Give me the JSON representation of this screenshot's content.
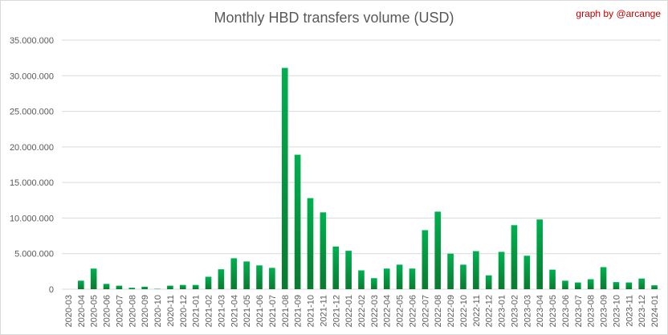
{
  "chart_data": {
    "type": "bar",
    "title": "Monthly HBD transfers volume (USD)",
    "credit": "graph by @arcange",
    "xlabel": "",
    "ylabel": "",
    "ylim": [
      0,
      35000000
    ],
    "y_ticks": [
      "0",
      "5.000.000",
      "10.000.000",
      "15.000.000",
      "20.000.000",
      "25.000.000",
      "30.000.000",
      "35.000.000"
    ],
    "grid": true,
    "legend": "none",
    "colors": {
      "bar_top": "#00b050",
      "bar_bottom": "#0a7a2f",
      "grid": "#d9d9d9",
      "axis_text": "#595959"
    },
    "categories": [
      "2020-03",
      "2020-04",
      "2020-05",
      "2020-06",
      "2020-07",
      "2020-08",
      "2020-09",
      "2020-10",
      "2020-11",
      "2020-12",
      "2021-01",
      "2021-02",
      "2021-03",
      "2021-04",
      "2021-05",
      "2021-06",
      "2021-07",
      "2021-08",
      "2021-09",
      "2021-10",
      "2021-11",
      "2021-12",
      "2022-01",
      "2022-02",
      "2022-03",
      "2022-04",
      "2022-05",
      "2022-06",
      "2022-07",
      "2022-08",
      "2022-09",
      "2022-10",
      "2022-11",
      "2022-12",
      "2023-01",
      "2023-02",
      "2023-03",
      "2023-04",
      "2023-05",
      "2023-06",
      "2023-07",
      "2023-08",
      "2023-09",
      "2023-10",
      "2023-11",
      "2023-12",
      "2024-01"
    ],
    "values": [
      0,
      1200000,
      2900000,
      750000,
      500000,
      200000,
      350000,
      50000,
      500000,
      600000,
      600000,
      1750000,
      2800000,
      4350000,
      3900000,
      3350000,
      3000000,
      31100000,
      18900000,
      12800000,
      10800000,
      6000000,
      5400000,
      2650000,
      1550000,
      2900000,
      3450000,
      2900000,
      8300000,
      10900000,
      5000000,
      3450000,
      5350000,
      1950000,
      5250000,
      9000000,
      4700000,
      9800000,
      2750000,
      1200000,
      950000,
      1400000,
      3100000,
      1000000,
      950000,
      1500000,
      550000
    ]
  }
}
